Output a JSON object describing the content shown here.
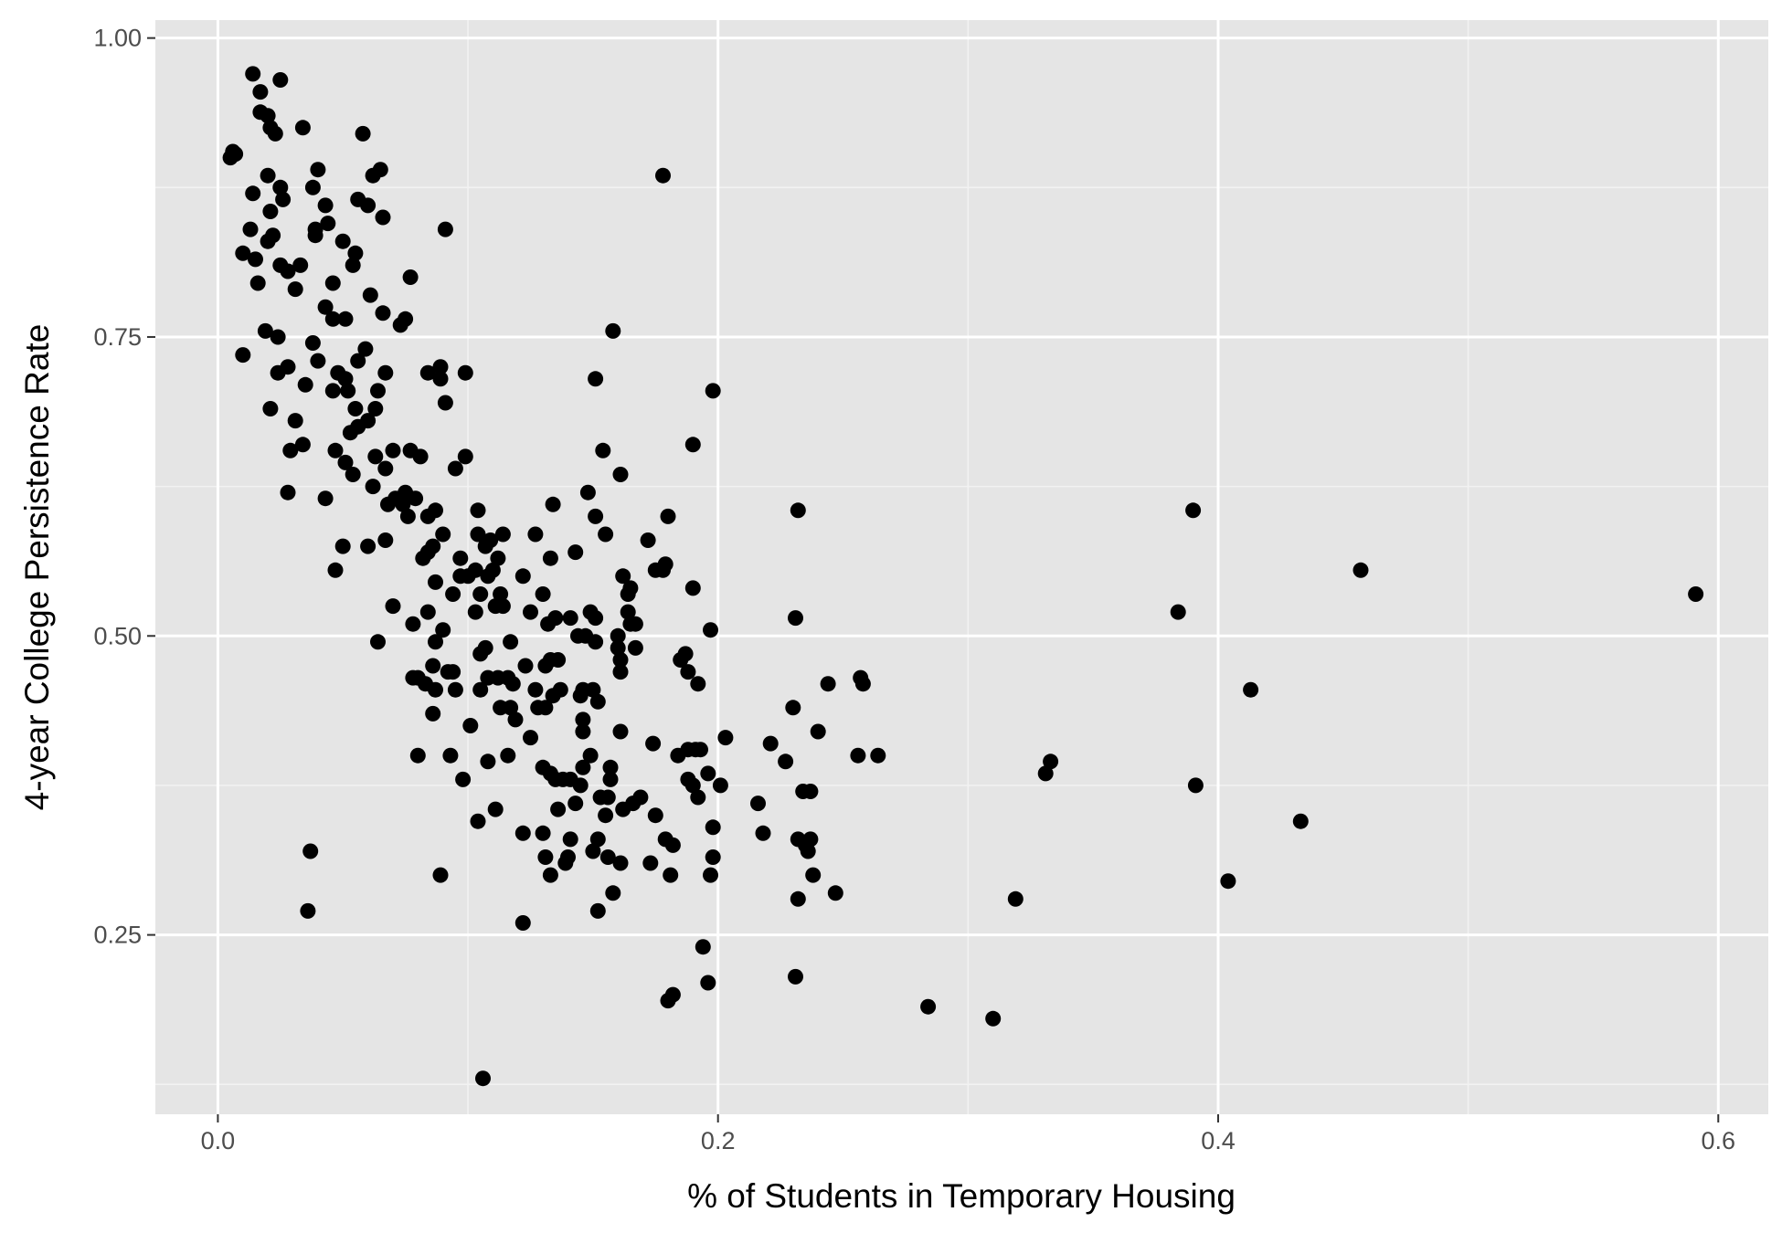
{
  "colors": {
    "panel_background": "#e5e5e5",
    "grid_major": "#ffffff",
    "grid_minor": "#f2f2f2",
    "point": "#000000",
    "tick_text": "#4d4d4d",
    "axis_title": "#000000"
  },
  "chart_data": {
    "type": "scatter",
    "title": "",
    "xlabel": "% of Students in Temporary Housing",
    "ylabel": "4-year College Persistence Rate",
    "xlim": [
      -0.025,
      0.62
    ],
    "ylim": [
      0.1,
      1.015
    ],
    "x_ticks": [
      0.0,
      0.2,
      0.4,
      0.6
    ],
    "x_tick_labels": [
      "0.0",
      "0.2",
      "0.4",
      "0.6"
    ],
    "y_ticks": [
      0.25,
      0.5,
      0.75,
      1.0
    ],
    "y_tick_labels": [
      "0.25",
      "0.50",
      "0.75",
      "1.00"
    ],
    "grid": true,
    "legend": "none",
    "points": [
      [
        0.005,
        0.9
      ],
      [
        0.006,
        0.905
      ],
      [
        0.007,
        0.903
      ],
      [
        0.014,
        0.97
      ],
      [
        0.017,
        0.955
      ],
      [
        0.025,
        0.965
      ],
      [
        0.017,
        0.938
      ],
      [
        0.02,
        0.935
      ],
      [
        0.021,
        0.925
      ],
      [
        0.023,
        0.92
      ],
      [
        0.034,
        0.925
      ],
      [
        0.058,
        0.92
      ],
      [
        0.02,
        0.885
      ],
      [
        0.014,
        0.87
      ],
      [
        0.025,
        0.875
      ],
      [
        0.026,
        0.865
      ],
      [
        0.04,
        0.89
      ],
      [
        0.065,
        0.89
      ],
      [
        0.062,
        0.885
      ],
      [
        0.038,
        0.875
      ],
      [
        0.021,
        0.855
      ],
      [
        0.013,
        0.84
      ],
      [
        0.022,
        0.835
      ],
      [
        0.02,
        0.83
      ],
      [
        0.039,
        0.84
      ],
      [
        0.043,
        0.86
      ],
      [
        0.056,
        0.865
      ],
      [
        0.06,
        0.86
      ],
      [
        0.066,
        0.85
      ],
      [
        0.039,
        0.835
      ],
      [
        0.044,
        0.845
      ],
      [
        0.05,
        0.83
      ],
      [
        0.055,
        0.82
      ],
      [
        0.091,
        0.84
      ],
      [
        0.01,
        0.82
      ],
      [
        0.015,
        0.815
      ],
      [
        0.025,
        0.81
      ],
      [
        0.028,
        0.805
      ],
      [
        0.033,
        0.81
      ],
      [
        0.054,
        0.81
      ],
      [
        0.016,
        0.795
      ],
      [
        0.031,
        0.79
      ],
      [
        0.046,
        0.795
      ],
      [
        0.061,
        0.785
      ],
      [
        0.077,
        0.8
      ],
      [
        0.043,
        0.775
      ],
      [
        0.046,
        0.765
      ],
      [
        0.051,
        0.765
      ],
      [
        0.066,
        0.77
      ],
      [
        0.075,
        0.765
      ],
      [
        0.073,
        0.76
      ],
      [
        0.019,
        0.755
      ],
      [
        0.024,
        0.75
      ],
      [
        0.038,
        0.745
      ],
      [
        0.059,
        0.74
      ],
      [
        0.01,
        0.735
      ],
      [
        0.028,
        0.725
      ],
      [
        0.04,
        0.73
      ],
      [
        0.056,
        0.73
      ],
      [
        0.067,
        0.72
      ],
      [
        0.024,
        0.72
      ],
      [
        0.048,
        0.72
      ],
      [
        0.051,
        0.715
      ],
      [
        0.084,
        0.72
      ],
      [
        0.089,
        0.715
      ],
      [
        0.089,
        0.725
      ],
      [
        0.099,
        0.72
      ],
      [
        0.035,
        0.71
      ],
      [
        0.046,
        0.705
      ],
      [
        0.052,
        0.705
      ],
      [
        0.064,
        0.705
      ],
      [
        0.091,
        0.695
      ],
      [
        0.021,
        0.69
      ],
      [
        0.055,
        0.69
      ],
      [
        0.063,
        0.69
      ],
      [
        0.06,
        0.68
      ],
      [
        0.031,
        0.68
      ],
      [
        0.056,
        0.675
      ],
      [
        0.053,
        0.67
      ],
      [
        0.034,
        0.66
      ],
      [
        0.029,
        0.655
      ],
      [
        0.047,
        0.655
      ],
      [
        0.063,
        0.65
      ],
      [
        0.07,
        0.655
      ],
      [
        0.077,
        0.655
      ],
      [
        0.081,
        0.65
      ],
      [
        0.051,
        0.645
      ],
      [
        0.054,
        0.635
      ],
      [
        0.067,
        0.64
      ],
      [
        0.095,
        0.64
      ],
      [
        0.099,
        0.65
      ],
      [
        0.062,
        0.625
      ],
      [
        0.071,
        0.615
      ],
      [
        0.075,
        0.62
      ],
      [
        0.079,
        0.615
      ],
      [
        0.084,
        0.6
      ],
      [
        0.087,
        0.605
      ],
      [
        0.028,
        0.62
      ],
      [
        0.043,
        0.615
      ],
      [
        0.068,
        0.61
      ],
      [
        0.074,
        0.61
      ],
      [
        0.076,
        0.6
      ],
      [
        0.05,
        0.575
      ],
      [
        0.06,
        0.575
      ],
      [
        0.067,
        0.58
      ],
      [
        0.086,
        0.575
      ],
      [
        0.084,
        0.57
      ],
      [
        0.082,
        0.565
      ],
      [
        0.09,
        0.585
      ],
      [
        0.047,
        0.555
      ],
      [
        0.07,
        0.525
      ],
      [
        0.064,
        0.495
      ],
      [
        0.078,
        0.51
      ],
      [
        0.084,
        0.52
      ],
      [
        0.087,
        0.545
      ],
      [
        0.09,
        0.505
      ],
      [
        0.087,
        0.495
      ],
      [
        0.086,
        0.475
      ],
      [
        0.094,
        0.47
      ],
      [
        0.092,
        0.47
      ],
      [
        0.078,
        0.465
      ],
      [
        0.08,
        0.465
      ],
      [
        0.083,
        0.46
      ],
      [
        0.087,
        0.455
      ],
      [
        0.095,
        0.455
      ],
      [
        0.086,
        0.435
      ],
      [
        0.08,
        0.4
      ],
      [
        0.093,
        0.4
      ],
      [
        0.098,
        0.38
      ],
      [
        0.089,
        0.3
      ],
      [
        0.036,
        0.27
      ],
      [
        0.037,
        0.32
      ],
      [
        0.101,
        0.425
      ],
      [
        0.104,
        0.345
      ],
      [
        0.106,
        0.13
      ],
      [
        0.094,
        0.535
      ],
      [
        0.097,
        0.55
      ],
      [
        0.1,
        0.55
      ],
      [
        0.103,
        0.555
      ],
      [
        0.108,
        0.55
      ],
      [
        0.11,
        0.555
      ],
      [
        0.112,
        0.565
      ],
      [
        0.104,
        0.585
      ],
      [
        0.107,
        0.575
      ],
      [
        0.104,
        0.605
      ],
      [
        0.109,
        0.58
      ],
      [
        0.114,
        0.585
      ],
      [
        0.097,
        0.565
      ],
      [
        0.103,
        0.52
      ],
      [
        0.105,
        0.535
      ],
      [
        0.111,
        0.525
      ],
      [
        0.113,
        0.535
      ],
      [
        0.114,
        0.525
      ],
      [
        0.105,
        0.485
      ],
      [
        0.107,
        0.49
      ],
      [
        0.108,
        0.465
      ],
      [
        0.112,
        0.465
      ],
      [
        0.116,
        0.465
      ],
      [
        0.118,
        0.46
      ],
      [
        0.117,
        0.44
      ],
      [
        0.119,
        0.43
      ],
      [
        0.113,
        0.44
      ],
      [
        0.105,
        0.455
      ],
      [
        0.108,
        0.395
      ],
      [
        0.116,
        0.4
      ],
      [
        0.111,
        0.355
      ],
      [
        0.122,
        0.335
      ],
      [
        0.122,
        0.26
      ],
      [
        0.122,
        0.55
      ],
      [
        0.125,
        0.52
      ],
      [
        0.127,
        0.585
      ],
      [
        0.13,
        0.535
      ],
      [
        0.133,
        0.565
      ],
      [
        0.134,
        0.61
      ],
      [
        0.132,
        0.51
      ],
      [
        0.135,
        0.515
      ],
      [
        0.117,
        0.495
      ],
      [
        0.123,
        0.475
      ],
      [
        0.127,
        0.455
      ],
      [
        0.131,
        0.475
      ],
      [
        0.133,
        0.48
      ],
      [
        0.136,
        0.48
      ],
      [
        0.125,
        0.415
      ],
      [
        0.128,
        0.44
      ],
      [
        0.131,
        0.44
      ],
      [
        0.134,
        0.45
      ],
      [
        0.137,
        0.455
      ],
      [
        0.13,
        0.39
      ],
      [
        0.133,
        0.385
      ],
      [
        0.135,
        0.38
      ],
      [
        0.138,
        0.38
      ],
      [
        0.13,
        0.335
      ],
      [
        0.131,
        0.315
      ],
      [
        0.133,
        0.3
      ],
      [
        0.136,
        0.355
      ],
      [
        0.139,
        0.31
      ],
      [
        0.141,
        0.38
      ],
      [
        0.141,
        0.515
      ],
      [
        0.144,
        0.5
      ],
      [
        0.147,
        0.5
      ],
      [
        0.149,
        0.52
      ],
      [
        0.151,
        0.515
      ],
      [
        0.151,
        0.495
      ],
      [
        0.143,
        0.57
      ],
      [
        0.148,
        0.62
      ],
      [
        0.151,
        0.6
      ],
      [
        0.155,
        0.585
      ],
      [
        0.154,
        0.655
      ],
      [
        0.151,
        0.715
      ],
      [
        0.161,
        0.635
      ],
      [
        0.158,
        0.755
      ],
      [
        0.146,
        0.455
      ],
      [
        0.145,
        0.45
      ],
      [
        0.15,
        0.455
      ],
      [
        0.152,
        0.445
      ],
      [
        0.146,
        0.43
      ],
      [
        0.146,
        0.42
      ],
      [
        0.149,
        0.4
      ],
      [
        0.146,
        0.39
      ],
      [
        0.145,
        0.375
      ],
      [
        0.143,
        0.36
      ],
      [
        0.141,
        0.33
      ],
      [
        0.14,
        0.315
      ],
      [
        0.15,
        0.32
      ],
      [
        0.152,
        0.33
      ],
      [
        0.153,
        0.365
      ],
      [
        0.155,
        0.35
      ],
      [
        0.156,
        0.365
      ],
      [
        0.157,
        0.38
      ],
      [
        0.157,
        0.39
      ],
      [
        0.156,
        0.315
      ],
      [
        0.158,
        0.285
      ],
      [
        0.152,
        0.27
      ],
      [
        0.16,
        0.49
      ],
      [
        0.161,
        0.48
      ],
      [
        0.161,
        0.47
      ],
      [
        0.16,
        0.5
      ],
      [
        0.162,
        0.55
      ],
      [
        0.164,
        0.535
      ],
      [
        0.164,
        0.52
      ],
      [
        0.165,
        0.51
      ],
      [
        0.165,
        0.54
      ],
      [
        0.167,
        0.49
      ],
      [
        0.167,
        0.51
      ],
      [
        0.161,
        0.42
      ],
      [
        0.162,
        0.355
      ],
      [
        0.161,
        0.31
      ],
      [
        0.166,
        0.36
      ],
      [
        0.169,
        0.365
      ],
      [
        0.172,
        0.58
      ],
      [
        0.175,
        0.555
      ],
      [
        0.179,
        0.56
      ],
      [
        0.178,
        0.555
      ],
      [
        0.178,
        0.885
      ],
      [
        0.18,
        0.6
      ],
      [
        0.174,
        0.41
      ],
      [
        0.175,
        0.35
      ],
      [
        0.173,
        0.31
      ],
      [
        0.179,
        0.33
      ],
      [
        0.182,
        0.325
      ],
      [
        0.181,
        0.3
      ],
      [
        0.18,
        0.195
      ],
      [
        0.182,
        0.2
      ],
      [
        0.184,
        0.4
      ],
      [
        0.185,
        0.48
      ],
      [
        0.187,
        0.485
      ],
      [
        0.188,
        0.47
      ],
      [
        0.19,
        0.54
      ],
      [
        0.19,
        0.375
      ],
      [
        0.188,
        0.38
      ],
      [
        0.191,
        0.405
      ],
      [
        0.188,
        0.405
      ],
      [
        0.193,
        0.405
      ],
      [
        0.192,
        0.46
      ],
      [
        0.192,
        0.365
      ],
      [
        0.196,
        0.385
      ],
      [
        0.197,
        0.505
      ],
      [
        0.197,
        0.3
      ],
      [
        0.198,
        0.315
      ],
      [
        0.198,
        0.34
      ],
      [
        0.194,
        0.24
      ],
      [
        0.196,
        0.21
      ],
      [
        0.198,
        0.705
      ],
      [
        0.19,
        0.66
      ],
      [
        0.201,
        0.375
      ],
      [
        0.203,
        0.415
      ],
      [
        0.216,
        0.36
      ],
      [
        0.218,
        0.335
      ],
      [
        0.221,
        0.41
      ],
      [
        0.227,
        0.395
      ],
      [
        0.23,
        0.44
      ],
      [
        0.231,
        0.515
      ],
      [
        0.232,
        0.605
      ],
      [
        0.232,
        0.33
      ],
      [
        0.232,
        0.28
      ],
      [
        0.231,
        0.215
      ],
      [
        0.234,
        0.37
      ],
      [
        0.235,
        0.325
      ],
      [
        0.236,
        0.32
      ],
      [
        0.237,
        0.37
      ],
      [
        0.237,
        0.33
      ],
      [
        0.238,
        0.3
      ],
      [
        0.24,
        0.42
      ],
      [
        0.244,
        0.46
      ],
      [
        0.247,
        0.285
      ],
      [
        0.256,
        0.4
      ],
      [
        0.257,
        0.465
      ],
      [
        0.258,
        0.46
      ],
      [
        0.264,
        0.4
      ],
      [
        0.284,
        0.19
      ],
      [
        0.31,
        0.18
      ],
      [
        0.319,
        0.28
      ],
      [
        0.331,
        0.385
      ],
      [
        0.333,
        0.395
      ],
      [
        0.384,
        0.52
      ],
      [
        0.39,
        0.605
      ],
      [
        0.391,
        0.375
      ],
      [
        0.404,
        0.295
      ],
      [
        0.413,
        0.455
      ],
      [
        0.433,
        0.345
      ],
      [
        0.457,
        0.555
      ],
      [
        0.591,
        0.535
      ]
    ]
  }
}
